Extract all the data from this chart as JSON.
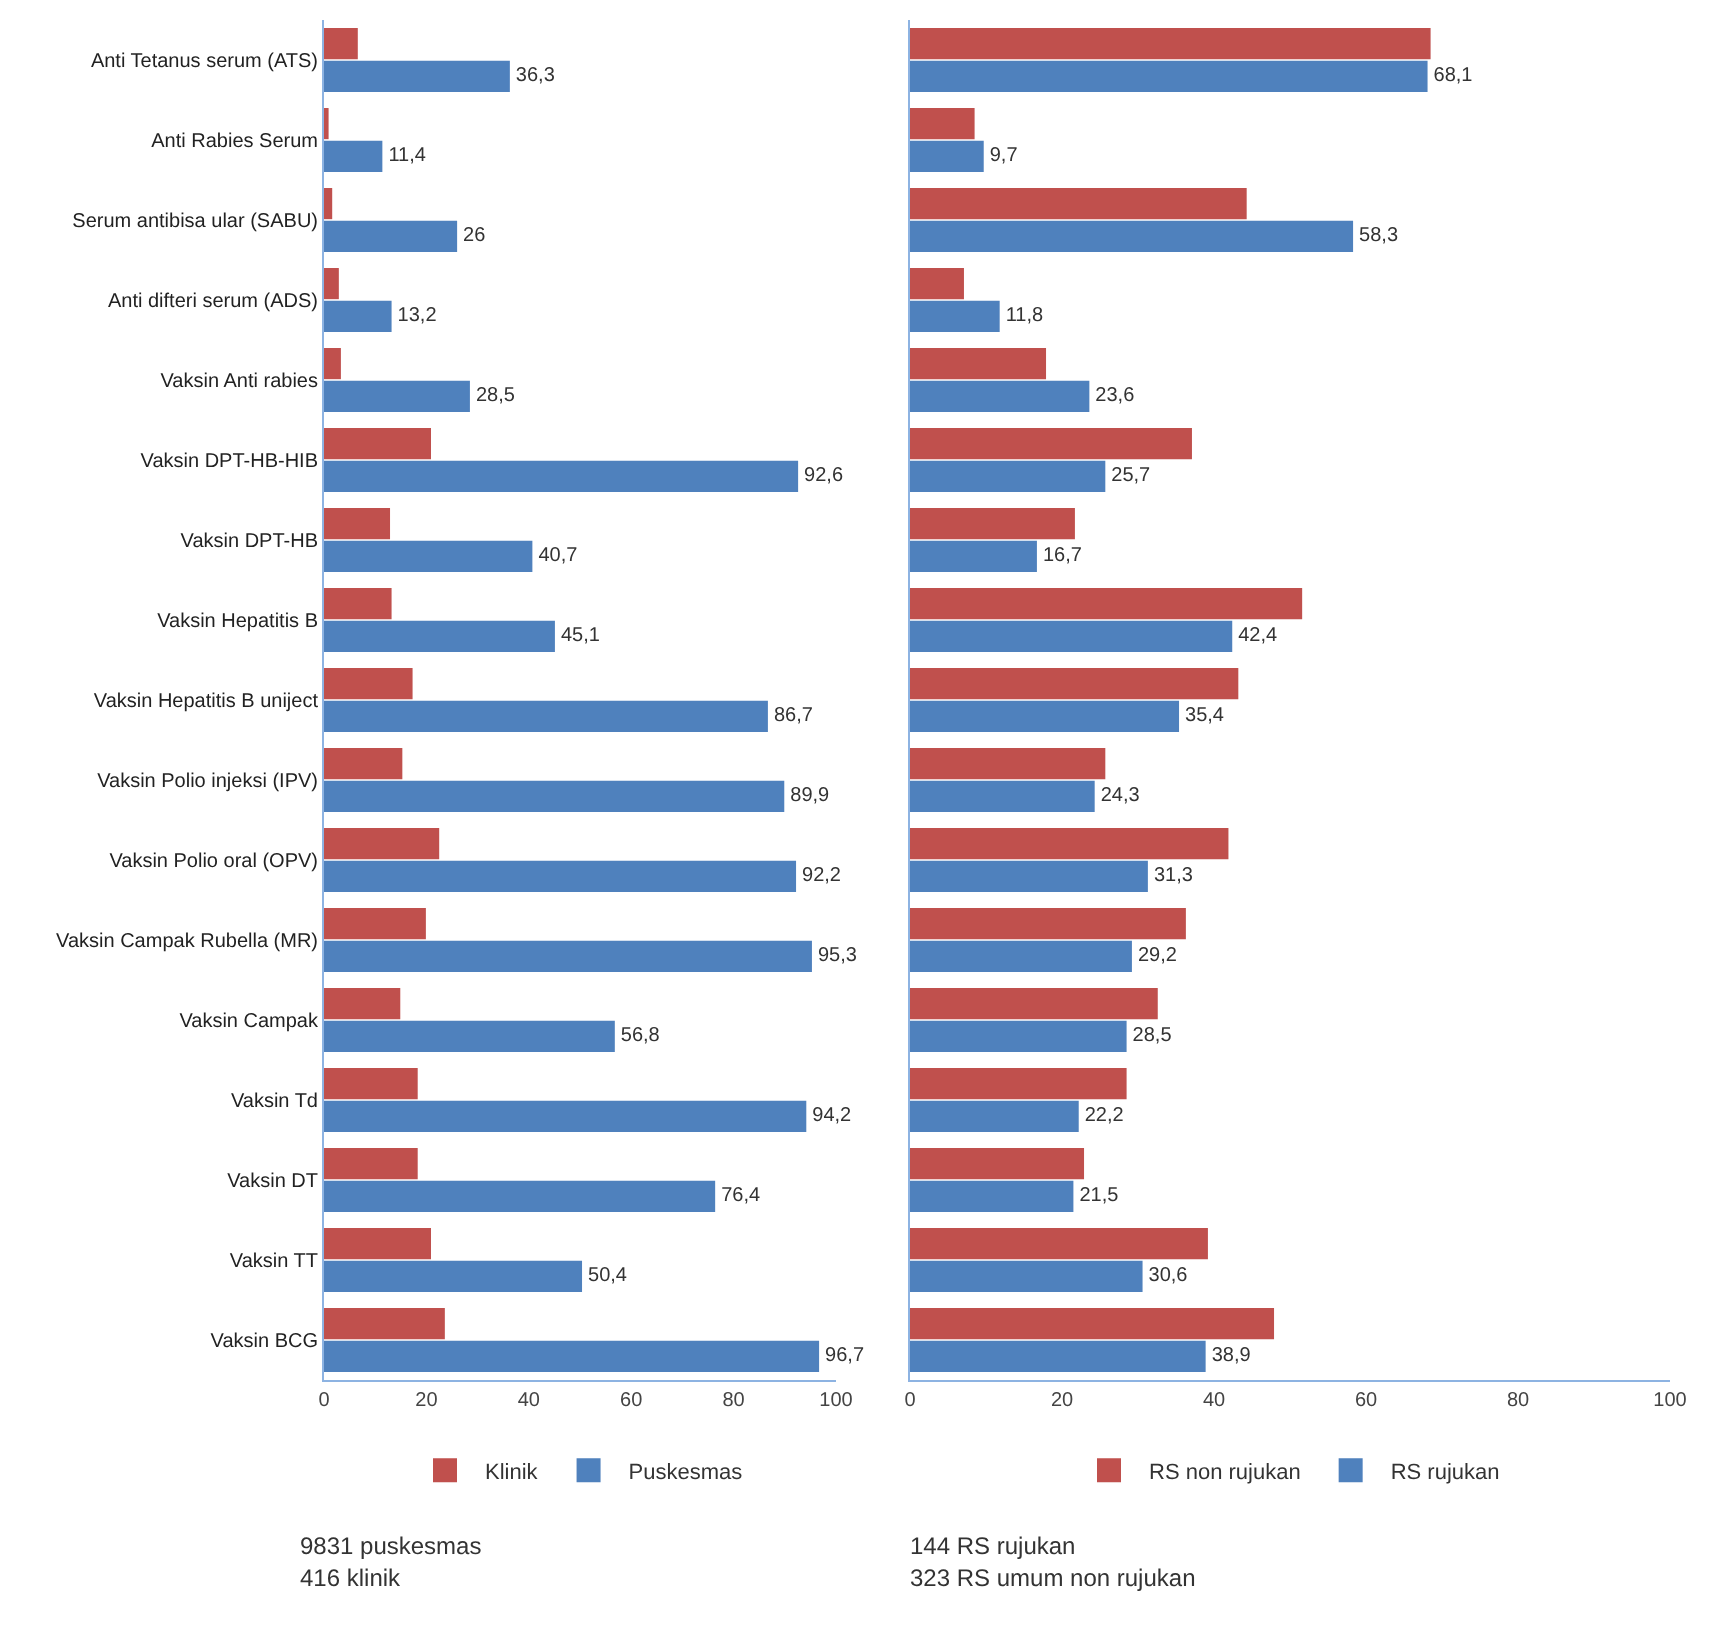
{
  "chart_data": [
    {
      "type": "bar",
      "orientation": "horizontal",
      "categories": [
        "Anti Tetanus serum (ATS)",
        "Anti Rabies Serum",
        "Serum antibisa ular (SABU)",
        "Anti difteri serum (ADS)",
        "Vaksin Anti rabies",
        "Vaksin DPT-HB-HIB",
        "Vaksin DPT-HB",
        "Vaksin Hepatitis B",
        "Vaksin Hepatitis B uniject",
        "Vaksin Polio injeksi (IPV)",
        "Vaksin Polio oral (OPV)",
        "Vaksin Campak Rubella (MR)",
        "Vaksin Campak",
        "Vaksin Td",
        "Vaksin DT",
        "Vaksin TT",
        "Vaksin BCG"
      ],
      "series": [
        {
          "name": "Klinik",
          "color": "#c0504d",
          "values": [
            6.6,
            0.9,
            1.6,
            2.9,
            3.3,
            20.9,
            12.9,
            13.2,
            17.3,
            15.3,
            22.5,
            19.9,
            14.9,
            18.3,
            18.3,
            20.9,
            23.6
          ]
        },
        {
          "name": "Puskesmas",
          "color": "#4f81bd",
          "values": [
            36.3,
            11.4,
            26,
            13.2,
            28.5,
            92.6,
            40.7,
            45.1,
            86.7,
            89.9,
            92.2,
            95.3,
            56.8,
            94.2,
            76.4,
            50.4,
            96.7
          ],
          "value_labels": [
            "36,3",
            "11,4",
            "26",
            "13,2",
            "28,5",
            "92,6",
            "40,7",
            "45,1",
            "86,7",
            "89,9",
            "92,2",
            "95,3",
            "56,8",
            "94,2",
            "76,4",
            "50,4",
            "96,7"
          ]
        }
      ],
      "xlim": [
        0,
        100
      ],
      "xticks": [
        0,
        20,
        40,
        60,
        80,
        100
      ],
      "grid": false,
      "legend": "bottom",
      "annotations": [
        "9831 puskesmas",
        "416 klinik"
      ]
    },
    {
      "type": "bar",
      "orientation": "horizontal",
      "categories": [
        null,
        null,
        null,
        null,
        null,
        null,
        null,
        null,
        null,
        null,
        null,
        null,
        null,
        null,
        null,
        null,
        null
      ],
      "series": [
        {
          "name": "RS non rujukan",
          "color": "#c0504d",
          "values": [
            68.5,
            8.5,
            44.3,
            7.1,
            17.9,
            37.1,
            21.7,
            51.6,
            43.2,
            25.7,
            41.9,
            36.3,
            32.6,
            28.5,
            22.9,
            39.2,
            47.9
          ]
        },
        {
          "name": "RS rujukan",
          "color": "#4f81bd",
          "values": [
            68.1,
            9.7,
            58.3,
            11.8,
            23.6,
            25.7,
            16.7,
            42.4,
            35.4,
            24.3,
            31.3,
            29.2,
            28.5,
            22.2,
            21.5,
            30.6,
            38.9
          ],
          "value_labels": [
            "68,1",
            "9,7",
            "58,3",
            "11,8",
            "23,6",
            "25,7",
            "16,7",
            "42,4",
            "35,4",
            "24,3",
            "31,3",
            "29,2",
            "28,5",
            "22,2",
            "21,5",
            "30,6",
            "38,9"
          ]
        }
      ],
      "xlim": [
        0,
        100
      ],
      "xticks": [
        0,
        20,
        40,
        60,
        80,
        100
      ],
      "grid": false,
      "legend": "bottom",
      "annotations": [
        "144 RS rujukan",
        "323 RS umum non rujukan"
      ]
    }
  ]
}
